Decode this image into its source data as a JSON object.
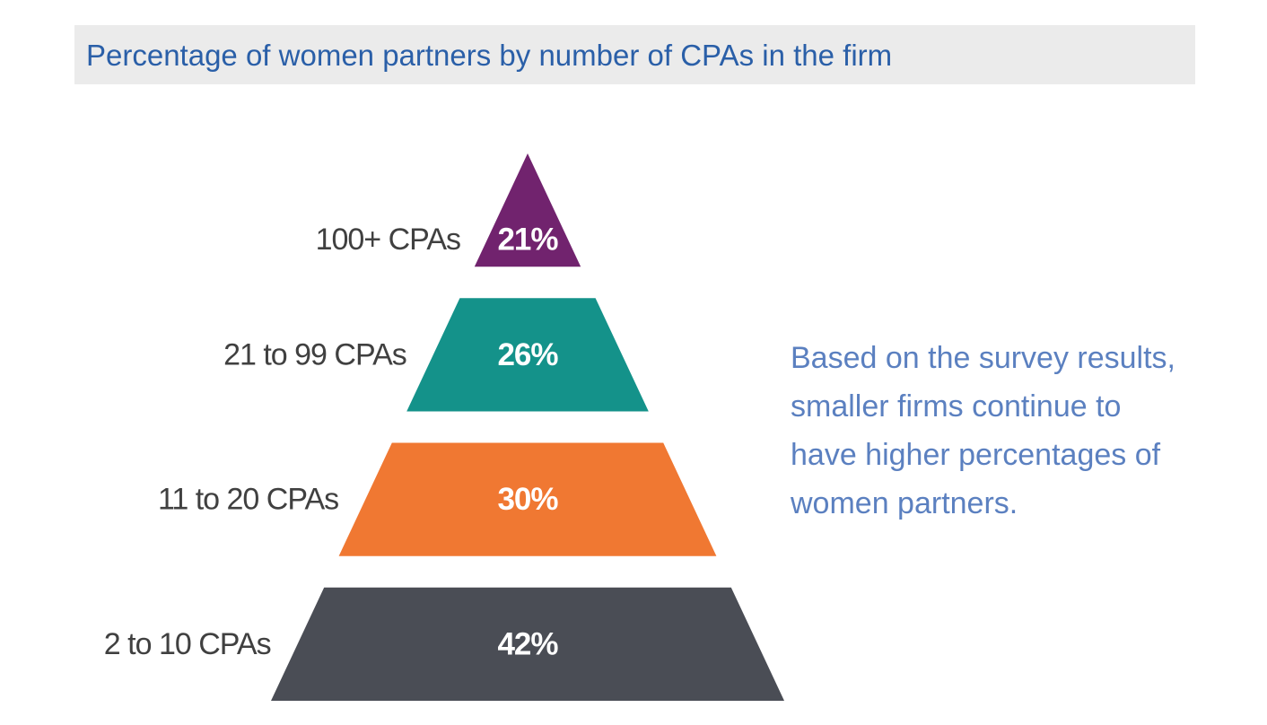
{
  "header": {
    "title": "Percentage of women partners by number of CPAs in the firm"
  },
  "chart_data": {
    "type": "bar",
    "subtype": "pyramid",
    "title": "Percentage of women partners by number of CPAs in the firm",
    "categories": [
      "100+ CPAs",
      "21 to 99 CPAs",
      "11 to 20 CPAs",
      "2 to 10 CPAs"
    ],
    "values": [
      21,
      26,
      30,
      42
    ],
    "value_labels": [
      "21%",
      "26%",
      "30%",
      "42%"
    ],
    "unit": "%",
    "colors": [
      "#71236e",
      "#14928a",
      "#f07832",
      "#4a4d55"
    ],
    "xlabel": "",
    "ylabel": "",
    "legend": "none",
    "grid": false
  },
  "annotation": {
    "lines": [
      "Based on the survey results,",
      "smaller firms continue to",
      "have higher percentages of",
      "women partners."
    ]
  }
}
